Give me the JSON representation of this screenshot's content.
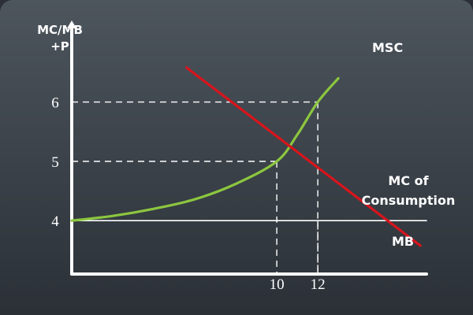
{
  "chart_data": {
    "type": "line",
    "ylabel_line1": "MC/MB",
    "ylabel_line2": "+P",
    "xlabel": "",
    "title": "",
    "x_ticks": [
      10,
      12
    ],
    "y_ticks": [
      4,
      5,
      6
    ],
    "xlim": [
      0,
      17.3
    ],
    "ylim": [
      3.1,
      6.95
    ],
    "series": [
      {
        "name": "MB",
        "color": "#d9141c",
        "points": [
          [
            5.6,
            6.58
          ],
          [
            17.0,
            3.58
          ]
        ]
      },
      {
        "name": "MSC",
        "color": "#8cc63f",
        "points": [
          [
            0,
            4.0
          ],
          [
            2,
            4.08
          ],
          [
            4,
            4.2
          ],
          [
            6,
            4.36
          ],
          [
            8,
            4.62
          ],
          [
            10,
            5.0
          ],
          [
            11,
            5.45
          ],
          [
            12,
            6.0
          ],
          [
            13,
            6.4
          ]
        ]
      },
      {
        "name": "MC of Consumption",
        "name_line1": "MC of",
        "name_line2": "Consumption",
        "color": "#ffffff",
        "points": [
          [
            0,
            4.0
          ],
          [
            17.3,
            4.0
          ]
        ]
      }
    ],
    "guides": [
      {
        "x": 10,
        "y": 5
      },
      {
        "x": 12,
        "y": 6
      },
      {
        "x": 12,
        "y": 4
      }
    ]
  },
  "colors": {
    "background_top": "#4d555d",
    "background_bottom": "#2a3036",
    "axis": "#ffffff"
  }
}
